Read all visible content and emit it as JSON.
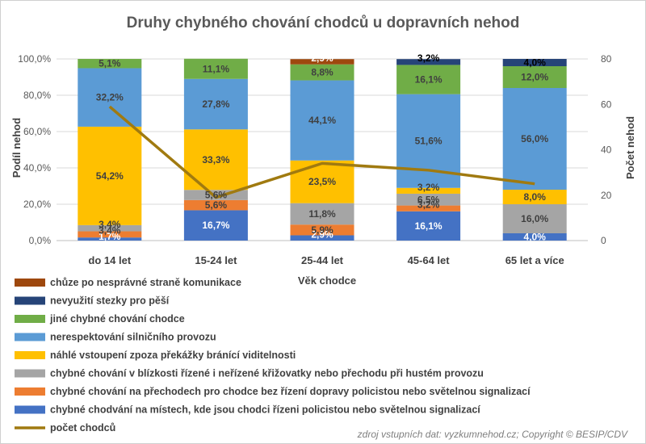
{
  "chart_data": {
    "type": "bar",
    "stacked": true,
    "title": "Druhy chybného chování chodců u dopravních nehod",
    "xlabel": "Věk chodce",
    "ylabel": "Podíl nehod",
    "y2label": "Počet nehod",
    "categories": [
      "do 14 let",
      "15-24 let",
      "25-44 let",
      "45-64 let",
      "65 let a více"
    ],
    "ylim": [
      0,
      100
    ],
    "yticks": [
      "0,0%",
      "20,0%",
      "40,0%",
      "60,0%",
      "80,0%",
      "100,0%"
    ],
    "y2lim": [
      0,
      80
    ],
    "y2ticks": [
      "0",
      "20",
      "40",
      "60",
      "80"
    ],
    "grid": true,
    "legend_position": "bottom-left",
    "series": [
      {
        "name": "chybné chodvání na místech, kde jsou chodci řízeni policistou nebo světelnou signalizací",
        "color": "#4472c4",
        "label_color": "#ffffff",
        "values": [
          1.7,
          16.7,
          2.9,
          16.1,
          4.0
        ],
        "labels": [
          "1,7%",
          "16,7%",
          "2,9%",
          "16,1%",
          "4,0%"
        ]
      },
      {
        "name": "chybné chování na přechodech pro chodce bez řízení dopravy policistou nebo světelnou signalizací",
        "color": "#ed7d31",
        "label_color": "#404040",
        "values": [
          3.4,
          5.6,
          5.9,
          3.2,
          0
        ],
        "labels": [
          "3,4%",
          "5,6%",
          "5,9%",
          "3,2%",
          ""
        ]
      },
      {
        "name": "chybné chování v blízkosti řízené i neřízené křižovatky nebo přechodu při hustém provozu",
        "color": "#a5a5a5",
        "label_color": "#404040",
        "values": [
          3.4,
          5.6,
          11.8,
          6.5,
          16.0
        ],
        "labels": [
          "3,4%",
          "5,6%",
          "11,8%",
          "6,5%",
          "16,0%"
        ]
      },
      {
        "name": "náhlé vstoupení zpoza překážky bránící viditelnosti",
        "color": "#ffc000",
        "label_color": "#404040",
        "values": [
          54.2,
          33.3,
          23.5,
          3.2,
          8.0
        ],
        "labels": [
          "54,2%",
          "33,3%",
          "23,5%",
          "3,2%",
          "8,0%"
        ]
      },
      {
        "name": "nerespektování silničního provozu",
        "color": "#5b9bd5",
        "label_color": "#404040",
        "values": [
          32.2,
          27.8,
          44.1,
          51.6,
          56.0
        ],
        "labels": [
          "32,2%",
          "27,8%",
          "44,1%",
          "51,6%",
          "56,0%"
        ]
      },
      {
        "name": "jiné chybné chování chodce",
        "color": "#70ad47",
        "label_color": "#404040",
        "values": [
          5.1,
          11.1,
          8.8,
          16.1,
          12.0
        ],
        "labels": [
          "5,1%",
          "11,1%",
          "8,8%",
          "16,1%",
          "12,0%"
        ]
      },
      {
        "name": "nevyužití stezky pro pěší",
        "color": "#264478",
        "label_color": "#000000",
        "values": [
          0,
          0,
          0,
          3.2,
          4.0
        ],
        "labels": [
          "",
          "",
          "",
          "3,2%",
          "4,0%"
        ]
      },
      {
        "name": "chůze po nesprávné straně komunikace",
        "color": "#9e480e",
        "label_color": "#ffffff",
        "values": [
          0,
          0,
          2.9,
          0,
          0
        ],
        "labels": [
          "",
          "",
          "2,9%",
          "",
          ""
        ]
      }
    ],
    "line": {
      "name": "počet chodců",
      "color": "#a07a10",
      "axis": "secondary",
      "values": [
        59,
        19,
        34,
        31,
        25
      ]
    },
    "source": "zdroj vstupních dat: vyzkumnehod.cz; Copyright © BESIP/CDV"
  }
}
